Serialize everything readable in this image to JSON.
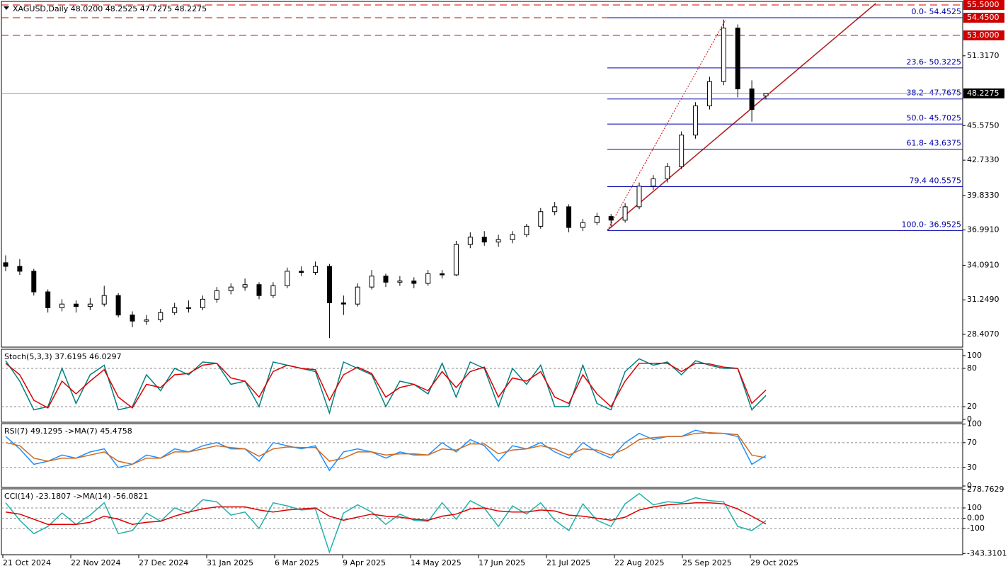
{
  "chart_data": [
    {
      "type": "candlestick",
      "title": "XAGUSD,Daily  48.0200 48.2525 47.7275 48.2275",
      "up_color": "#ffffff",
      "down_color": "#000000",
      "ohlc": [
        [
          34.3,
          34.9,
          33.6,
          34.0
        ],
        [
          34.0,
          34.6,
          33.3,
          33.6
        ],
        [
          33.6,
          33.8,
          31.6,
          31.9
        ],
        [
          31.9,
          32.1,
          30.2,
          30.6
        ],
        [
          30.6,
          31.3,
          30.3,
          30.9
        ],
        [
          30.9,
          31.2,
          30.2,
          30.7
        ],
        [
          30.7,
          31.4,
          30.4,
          30.9
        ],
        [
          30.9,
          32.4,
          30.7,
          31.6
        ],
        [
          31.6,
          31.8,
          29.8,
          30.0
        ],
        [
          30.0,
          30.3,
          29.0,
          29.5
        ],
        [
          29.5,
          30.0,
          29.2,
          29.6
        ],
        [
          29.6,
          30.5,
          29.4,
          30.2
        ],
        [
          30.2,
          31.0,
          30.0,
          30.6
        ],
        [
          30.6,
          31.2,
          30.2,
          30.6
        ],
        [
          30.6,
          31.6,
          30.4,
          31.3
        ],
        [
          31.3,
          32.3,
          31.0,
          32.0
        ],
        [
          32.0,
          32.6,
          31.7,
          32.3
        ],
        [
          32.3,
          33.0,
          32.0,
          32.5
        ],
        [
          32.5,
          32.7,
          31.3,
          31.6
        ],
        [
          31.6,
          32.7,
          31.4,
          32.4
        ],
        [
          32.4,
          33.9,
          32.2,
          33.6
        ],
        [
          33.6,
          34.0,
          33.2,
          33.5
        ],
        [
          33.5,
          34.4,
          33.3,
          34.0
        ],
        [
          34.0,
          34.2,
          28.1,
          31.0
        ],
        [
          31.0,
          31.6,
          30.0,
          30.9
        ],
        [
          30.9,
          32.6,
          30.7,
          32.3
        ],
        [
          32.3,
          33.7,
          32.1,
          33.2
        ],
        [
          33.2,
          33.4,
          32.3,
          32.7
        ],
        [
          32.7,
          33.2,
          32.4,
          32.8
        ],
        [
          32.8,
          33.1,
          32.2,
          32.6
        ],
        [
          32.6,
          33.7,
          32.4,
          33.4
        ],
        [
          33.4,
          33.7,
          33.0,
          33.3
        ],
        [
          33.3,
          36.1,
          33.2,
          35.8
        ],
        [
          35.8,
          36.8,
          35.5,
          36.4
        ],
        [
          36.4,
          36.9,
          35.7,
          36.0
        ],
        [
          36.0,
          36.6,
          35.6,
          36.2
        ],
        [
          36.2,
          36.9,
          35.9,
          36.6
        ],
        [
          36.6,
          37.5,
          36.4,
          37.3
        ],
        [
          37.3,
          38.8,
          37.1,
          38.5
        ],
        [
          38.5,
          39.3,
          38.2,
          38.9
        ],
        [
          38.9,
          39.1,
          36.8,
          37.2
        ],
        [
          37.2,
          37.9,
          36.9,
          37.6
        ],
        [
          37.6,
          38.4,
          37.4,
          38.1
        ],
        [
          38.1,
          38.3,
          37.3,
          37.8
        ],
        [
          37.8,
          39.2,
          37.6,
          38.9
        ],
        [
          38.9,
          40.9,
          38.7,
          40.6
        ],
        [
          40.6,
          41.5,
          40.3,
          41.2
        ],
        [
          41.2,
          42.5,
          40.9,
          42.2
        ],
        [
          42.2,
          45.1,
          42.0,
          44.8
        ],
        [
          44.8,
          47.5,
          44.5,
          47.2
        ],
        [
          47.2,
          49.6,
          46.9,
          49.2
        ],
        [
          49.2,
          54.3,
          48.9,
          53.6
        ],
        [
          53.6,
          53.9,
          47.9,
          48.6
        ],
        [
          48.6,
          49.3,
          45.9,
          46.9
        ],
        [
          48.02,
          48.2525,
          47.7275,
          48.2275
        ]
      ],
      "ylim": [
        27.358,
        55.791
      ],
      "yticks": [
        {
          "value": 51.317,
          "label": "51.3170"
        },
        {
          "value": 45.575,
          "label": "45.5750"
        },
        {
          "value": 42.733,
          "label": "42.7330"
        },
        {
          "value": 39.833,
          "label": "39.8330"
        },
        {
          "value": 36.991,
          "label": "36.9910"
        },
        {
          "value": 34.091,
          "label": "34.0910"
        },
        {
          "value": 31.249,
          "label": "31.2490"
        },
        {
          "value": 28.407,
          "label": "28.4070"
        }
      ],
      "last_price": {
        "value": 48.2275,
        "label": "48.2275"
      },
      "levels": [
        {
          "value": 55.5,
          "label": "55.5000"
        },
        {
          "value": 54.45,
          "label": "54.4500"
        },
        {
          "value": 53.0,
          "label": "53.0000"
        }
      ],
      "level_color": "#cc0000",
      "fib_color": "#0000aa",
      "fib": [
        {
          "value": 54.4525,
          "label": "0.0- 54.4525"
        },
        {
          "value": 50.3225,
          "label": "23.6- 50.3225"
        },
        {
          "value": 47.7675,
          "label": "38.2- 47.7675"
        },
        {
          "value": 45.7025,
          "label": "50.0- 45.7025"
        },
        {
          "value": 43.6375,
          "label": "61.8- 43.6375"
        },
        {
          "value": 40.5575,
          "label": "79.4 40.5575"
        },
        {
          "value": 36.9525,
          "label": "100.0- 36.9525"
        }
      ]
    },
    {
      "type": "line",
      "title": "Stoch(5,3,3) 37.6195 46.0297",
      "series": [
        {
          "color": "#008080",
          "values": [
            92,
            60,
            15,
            20,
            80,
            25,
            70,
            85,
            15,
            20,
            70,
            45,
            80,
            70,
            90,
            88,
            55,
            60,
            20,
            90,
            85,
            80,
            75,
            10,
            90,
            80,
            70,
            20,
            60,
            55,
            40,
            88,
            35,
            90,
            80,
            20,
            80,
            55,
            85,
            20,
            20,
            85,
            25,
            15,
            75,
            95,
            85,
            90,
            70,
            92,
            85,
            80,
            80,
            15,
            37.6195
          ]
        },
        {
          "color": "#dd0000",
          "values": [
            88,
            70,
            30,
            18,
            60,
            40,
            60,
            78,
            35,
            18,
            55,
            50,
            70,
            72,
            85,
            88,
            65,
            60,
            35,
            75,
            85,
            80,
            78,
            30,
            70,
            82,
            72,
            35,
            50,
            55,
            45,
            75,
            50,
            75,
            82,
            35,
            65,
            60,
            75,
            35,
            25,
            70,
            40,
            20,
            60,
            88,
            88,
            88,
            75,
            88,
            87,
            82,
            80,
            25,
            46.0297
          ]
        }
      ],
      "ylim": [
        -4.4,
        110
      ],
      "yticks": [
        100,
        80,
        20,
        0
      ],
      "levels": [
        80,
        20
      ]
    },
    {
      "type": "line",
      "title": "RSI(7) 49.1295 ->MA(7) 45.4758",
      "series": [
        {
          "color": "#1e90ff",
          "values": [
            80,
            60,
            35,
            40,
            50,
            45,
            55,
            60,
            30,
            35,
            50,
            45,
            60,
            55,
            65,
            70,
            60,
            60,
            40,
            70,
            65,
            60,
            65,
            25,
            55,
            60,
            55,
            45,
            55,
            50,
            50,
            70,
            55,
            75,
            65,
            40,
            65,
            60,
            70,
            55,
            45,
            70,
            55,
            45,
            70,
            85,
            75,
            80,
            80,
            90,
            85,
            85,
            80,
            35,
            49.1295
          ]
        },
        {
          "color": "#d2691e",
          "values": [
            70,
            65,
            45,
            40,
            45,
            45,
            50,
            55,
            40,
            35,
            45,
            45,
            55,
            55,
            60,
            65,
            62,
            60,
            48,
            60,
            63,
            62,
            62,
            40,
            45,
            55,
            55,
            50,
            52,
            52,
            50,
            60,
            58,
            68,
            68,
            52,
            58,
            60,
            65,
            60,
            50,
            60,
            58,
            50,
            60,
            75,
            78,
            80,
            80,
            85,
            86,
            85,
            83,
            50,
            45.4758
          ]
        }
      ],
      "ylim": [
        -2.3,
        100.7
      ],
      "yticks": [
        100,
        70,
        30,
        0
      ],
      "levels": [
        70,
        30
      ]
    },
    {
      "type": "line",
      "title": "CCI(14) -23.1807  ->MA(14) -56.0821",
      "series": [
        {
          "color": "#20b2aa",
          "values": [
            150,
            -20,
            -150,
            -80,
            50,
            -60,
            30,
            150,
            -150,
            -120,
            50,
            -30,
            100,
            50,
            180,
            160,
            30,
            60,
            -100,
            150,
            120,
            80,
            90,
            -330,
            50,
            130,
            60,
            -60,
            40,
            -20,
            -30,
            150,
            -10,
            170,
            100,
            -80,
            120,
            40,
            150,
            -20,
            -120,
            140,
            -20,
            -80,
            140,
            240,
            130,
            160,
            150,
            200,
            170,
            160,
            -80,
            -120,
            -23.1807
          ]
        },
        {
          "color": "#dd0000",
          "values": [
            60,
            40,
            -10,
            -60,
            -60,
            -60,
            -40,
            20,
            -10,
            -60,
            -40,
            -30,
            20,
            60,
            90,
            110,
            110,
            110,
            80,
            60,
            80,
            90,
            100,
            20,
            -20,
            10,
            40,
            20,
            10,
            -10,
            -20,
            20,
            40,
            90,
            100,
            70,
            60,
            60,
            80,
            70,
            30,
            20,
            0,
            -20,
            10,
            80,
            110,
            130,
            140,
            150,
            150,
            140,
            90,
            20,
            -56.0821
          ]
        }
      ],
      "ylim": [
        -355,
        286
      ],
      "yticks": [
        278.7629,
        100,
        {
          "value": 0,
          "label": "0.00"
        },
        -100,
        -343.3101
      ],
      "levels": [
        100,
        0,
        -100
      ]
    }
  ],
  "x_labels": [
    "21 Oct 2024",
    "22 Nov 2024",
    "27 Dec 2024",
    "31 Jan 2025",
    "6 Mar 2025",
    "9 Apr 2025",
    "14 May 2025",
    "17 Jun 2025",
    "21 Jul 2025",
    "22 Aug 2025",
    "25 Sep 2025",
    "29 Oct 2025"
  ]
}
